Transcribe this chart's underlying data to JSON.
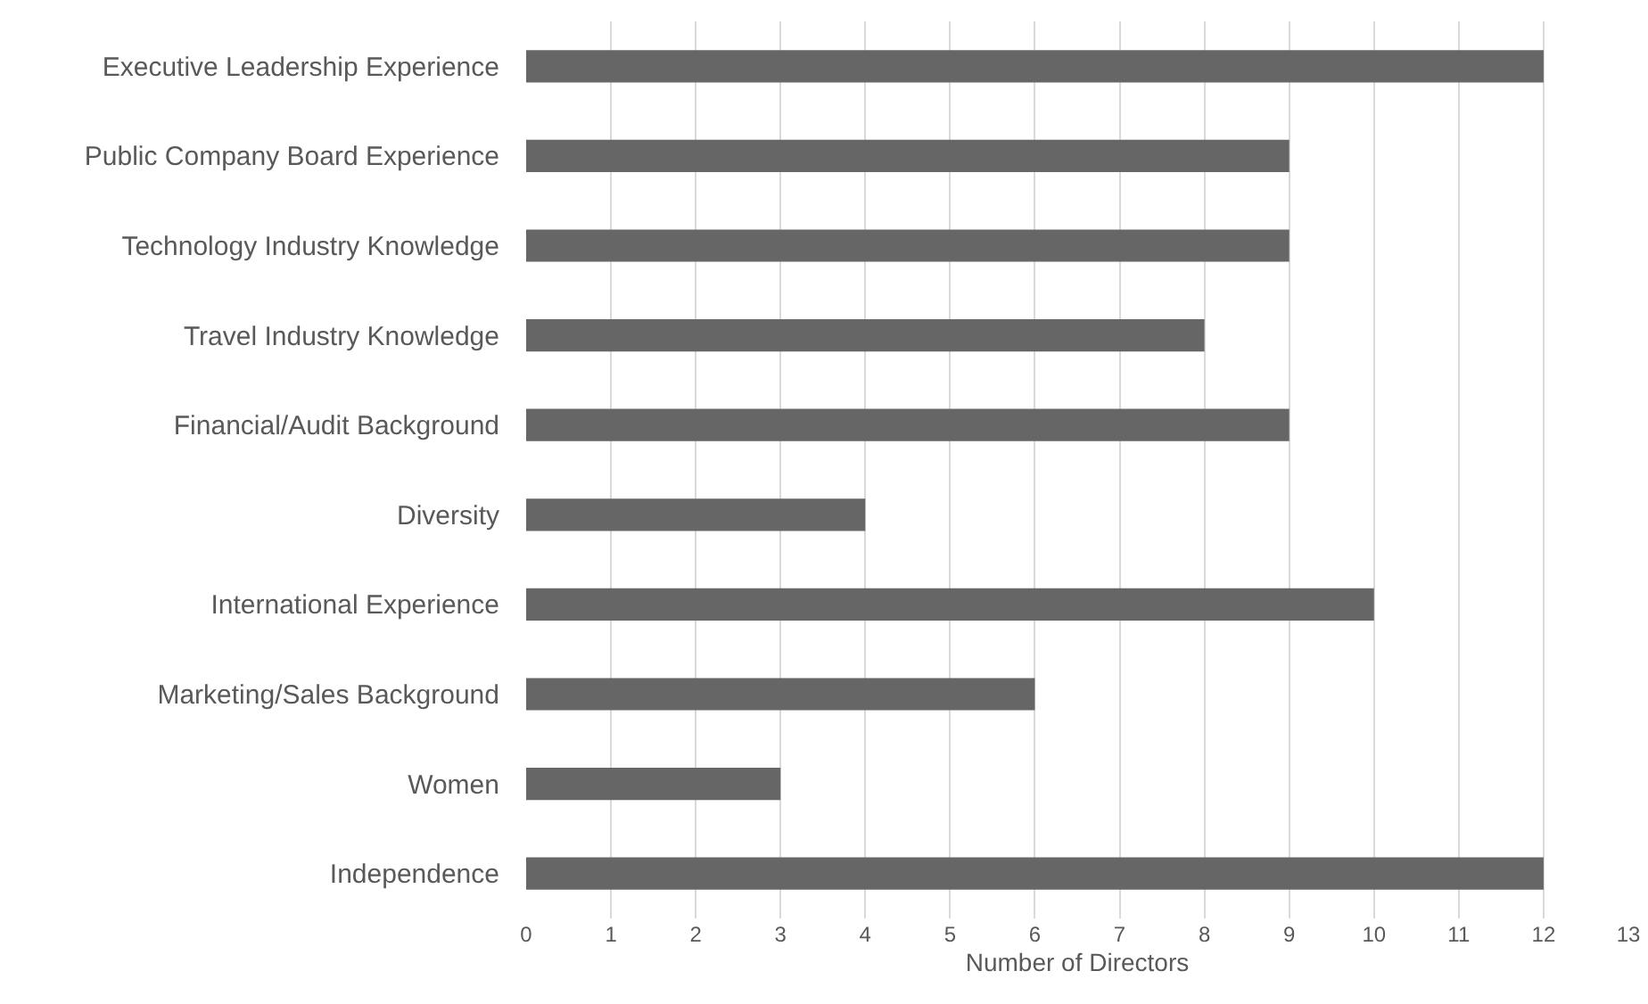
{
  "chart_data": {
    "type": "bar",
    "orientation": "horizontal",
    "xlabel": "Number of Directors",
    "categories": [
      "Executive Leadership Experience",
      "Public Company Board Experience",
      "Technology Industry Knowledge",
      "Travel Industry Knowledge",
      "Financial/Audit Background",
      "Diversity",
      "International Experience",
      "Marketing/Sales Background",
      "Women",
      "Independence"
    ],
    "values": [
      12,
      9,
      9,
      8,
      9,
      4,
      10,
      6,
      3,
      12
    ],
    "color": "#666666",
    "xlim": [
      0,
      13
    ],
    "xticks": [
      0,
      1,
      2,
      3,
      4,
      5,
      6,
      7,
      8,
      9,
      10,
      11,
      12,
      13
    ],
    "grid": "x"
  }
}
